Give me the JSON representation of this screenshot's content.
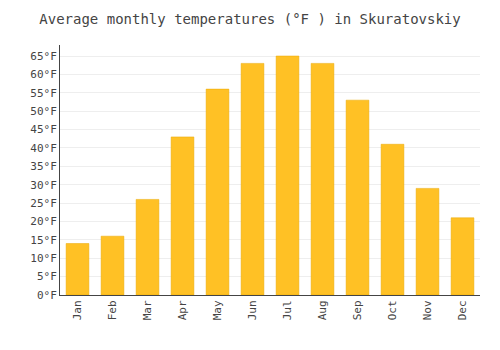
{
  "chart_data": {
    "type": "bar",
    "title": "Average monthly temperatures (°F ) in Skuratovskiy",
    "categories": [
      "Jan",
      "Feb",
      "Mar",
      "Apr",
      "May",
      "Jun",
      "Jul",
      "Aug",
      "Sep",
      "Oct",
      "Nov",
      "Dec"
    ],
    "values": [
      14,
      16,
      26,
      43,
      56,
      63,
      65,
      63,
      53,
      41,
      29,
      21
    ],
    "color": "#FFC125",
    "ylim": [
      0,
      68
    ],
    "yticks": [
      {
        "value": 0,
        "label": "0°F"
      },
      {
        "value": 5,
        "label": "5°F"
      },
      {
        "value": 10,
        "label": "10°F"
      },
      {
        "value": 15,
        "label": "15°F"
      },
      {
        "value": 20,
        "label": "20°F"
      },
      {
        "value": 25,
        "label": "25°F"
      },
      {
        "value": 30,
        "label": "30°F"
      },
      {
        "value": 35,
        "label": "35°F"
      },
      {
        "value": 40,
        "label": "40°F"
      },
      {
        "value": 45,
        "label": "45°F"
      },
      {
        "value": 50,
        "label": "50°F"
      },
      {
        "value": 55,
        "label": "55°F"
      },
      {
        "value": 60,
        "label": "60°F"
      },
      {
        "value": 65,
        "label": "65°F"
      }
    ],
    "grid": true
  }
}
